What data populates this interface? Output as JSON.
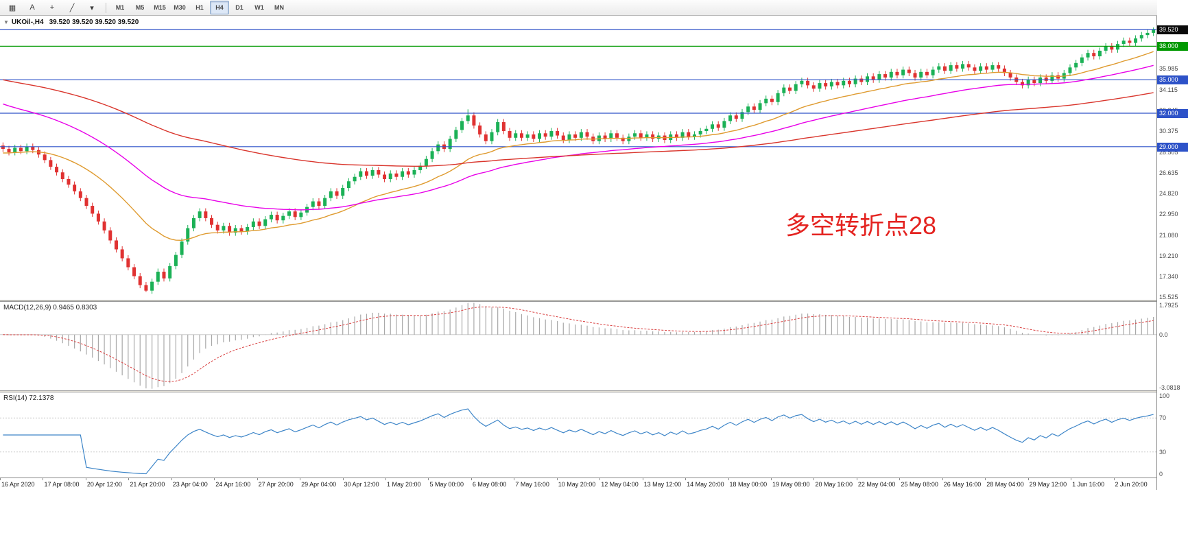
{
  "colors": {
    "bull": "#1bb156",
    "bear": "#e03131",
    "ma_fast": "#df9b30",
    "ma_mid": "#e800e8",
    "ma_slow": "#d9352c",
    "hline_blue": "#2d52c8",
    "hline_green": "#009900",
    "current_price_bg": "#0a0a0a",
    "macd_hist": "#a8a8a8",
    "macd_signal": "#d94040",
    "rsi_line": "#3d85c8",
    "annotation": "#e42320"
  },
  "toolbar": {
    "icons": [
      {
        "name": "charts-grid-icon",
        "glyph": "▦"
      },
      {
        "name": "cursor-mode-button",
        "glyph": "A"
      },
      {
        "name": "crosshair-icon",
        "glyph": "+"
      },
      {
        "name": "draw-line-tools-icon",
        "glyph": "╱"
      },
      {
        "name": "dropdown-caret-icon",
        "glyph": "▾"
      }
    ],
    "timeframes": [
      "M1",
      "M5",
      "M15",
      "M30",
      "H1",
      "H4",
      "D1",
      "W1",
      "MN"
    ],
    "active_timeframe": "H4"
  },
  "main_chart": {
    "one_click_glyph": "▼",
    "symbol": "UKOil-,H4",
    "quotes": "39.520 39.520 39.520 39.520",
    "annotation": "多空转折点28",
    "price_ticks": [
      "35.985",
      "34.115",
      "32.245",
      "30.375",
      "28.505",
      "26.635",
      "24.820",
      "22.950",
      "21.080",
      "19.210",
      "17.340",
      "15.525"
    ],
    "hlines": [
      {
        "value": 39.5,
        "color": "#2d52c8",
        "label": ""
      },
      {
        "value": 38.0,
        "color": "#009900",
        "label": "38.000"
      },
      {
        "value": 35.0,
        "color": "#2d52c8",
        "label": "35.000"
      },
      {
        "value": 32.0,
        "color": "#2d52c8",
        "label": "32.000"
      },
      {
        "value": 29.0,
        "color": "#2d52c8",
        "label": "29.000"
      }
    ],
    "current_price": {
      "value": 39.52,
      "text": "39.520"
    }
  },
  "macd": {
    "label": "MACD(12,26,9) 0.9465 0.8303",
    "ticks": [
      "1.7925",
      "0.0",
      "-3.0818"
    ],
    "ylim": [
      -3.0818,
      1.7925
    ]
  },
  "rsi": {
    "label": "RSI(14) 72.1378",
    "ticks": [
      "100",
      "70",
      "30",
      "0"
    ],
    "levels": [
      70,
      30
    ]
  },
  "time_axis": [
    "16 Apr 2020",
    "17 Apr 08:00",
    "20 Apr 12:00",
    "21 Apr 20:00",
    "23 Apr 04:00",
    "24 Apr 16:00",
    "27 Apr 20:00",
    "29 Apr 04:00",
    "30 Apr 12:00",
    "1 May 20:00",
    "5 May 00:00",
    "6 May 08:00",
    "7 May 16:00",
    "10 May 20:00",
    "12 May 04:00",
    "13 May 12:00",
    "14 May 20:00",
    "18 May 00:00",
    "19 May 08:00",
    "20 May 16:00",
    "22 May 04:00",
    "25 May 08:00",
    "26 May 16:00",
    "28 May 04:00",
    "29 May 12:00",
    "1 Jun 16:00",
    "2 Jun 20:00"
  ],
  "chart_data": {
    "type": "candlestick",
    "symbol": "UKOil-",
    "timeframe": "H4",
    "title": "UKOil-,H4",
    "ylim": [
      15.28,
      40.73
    ],
    "first_open": 29.1,
    "wick": 0.28,
    "closes": [
      28.8,
      28.5,
      28.9,
      28.6,
      29.0,
      28.7,
      28.3,
      27.8,
      27.2,
      26.7,
      26.1,
      25.6,
      25.0,
      24.4,
      23.7,
      23.0,
      22.3,
      21.5,
      20.6,
      19.8,
      19.0,
      18.2,
      17.4,
      16.6,
      16.1,
      16.9,
      17.8,
      17.2,
      18.3,
      19.3,
      20.5,
      21.7,
      22.6,
      23.2,
      22.6,
      22.0,
      21.5,
      21.9,
      21.3,
      21.7,
      21.4,
      21.8,
      22.3,
      21.9,
      22.5,
      22.9,
      22.4,
      22.8,
      23.2,
      22.7,
      23.1,
      23.6,
      24.1,
      23.7,
      24.4,
      25.0,
      24.6,
      25.3,
      25.9,
      26.3,
      26.8,
      26.4,
      26.9,
      26.5,
      26.1,
      26.6,
      26.3,
      26.8,
      26.5,
      26.9,
      27.3,
      27.9,
      28.6,
      29.2,
      28.8,
      29.7,
      30.5,
      31.3,
      31.8,
      30.9,
      30.1,
      29.5,
      30.3,
      31.2,
      30.4,
      29.8,
      30.2,
      29.8,
      30.1,
      29.7,
      30.2,
      29.9,
      30.4,
      30.0,
      29.6,
      30.1,
      29.8,
      30.3,
      29.9,
      29.5,
      30.0,
      29.7,
      30.2,
      29.8,
      29.5,
      29.9,
      30.2,
      29.8,
      30.1,
      29.7,
      30.0,
      29.6,
      30.1,
      29.8,
      30.3,
      29.9,
      30.1,
      30.4,
      30.6,
      31.0,
      30.7,
      31.3,
      31.8,
      31.5,
      32.1,
      32.6,
      32.3,
      32.9,
      33.3,
      33.0,
      33.8,
      34.3,
      34.0,
      34.6,
      34.9,
      34.5,
      34.2,
      34.7,
      34.4,
      34.8,
      34.5,
      34.9,
      34.6,
      35.1,
      34.8,
      35.3,
      35.0,
      35.5,
      35.2,
      35.7,
      35.4,
      35.9,
      35.6,
      35.2,
      35.7,
      35.4,
      35.9,
      36.2,
      35.8,
      36.3,
      36.0,
      36.4,
      36.1,
      35.8,
      36.2,
      35.9,
      36.3,
      36.0,
      35.6,
      35.2,
      34.8,
      34.5,
      35.0,
      34.7,
      35.2,
      34.9,
      35.4,
      35.1,
      35.6,
      36.1,
      36.5,
      37.0,
      37.4,
      37.1,
      37.6,
      38.0,
      37.7,
      38.2,
      38.5,
      38.3,
      38.7,
      39.0,
      39.2,
      39.52
    ],
    "special_wicks": {
      "24": {
        "low": 15.98
      },
      "78": {
        "high": 32.35
      },
      "193": {
        "high": 39.68
      }
    },
    "moving_averages": [
      {
        "name": "ma-fast-orange",
        "color": "#df9b30",
        "period": 22,
        "seed": 28.4
      },
      {
        "name": "ma-mid-magenta",
        "color": "#e800e8",
        "period": 48,
        "seed": 33.0
      },
      {
        "name": "ma-slow-red",
        "color": "#d9352c",
        "period": 120,
        "seed": 35.1
      }
    ],
    "macd_params": {
      "fast": 12,
      "slow": 26,
      "signal": 9
    },
    "rsi_period": 14
  }
}
